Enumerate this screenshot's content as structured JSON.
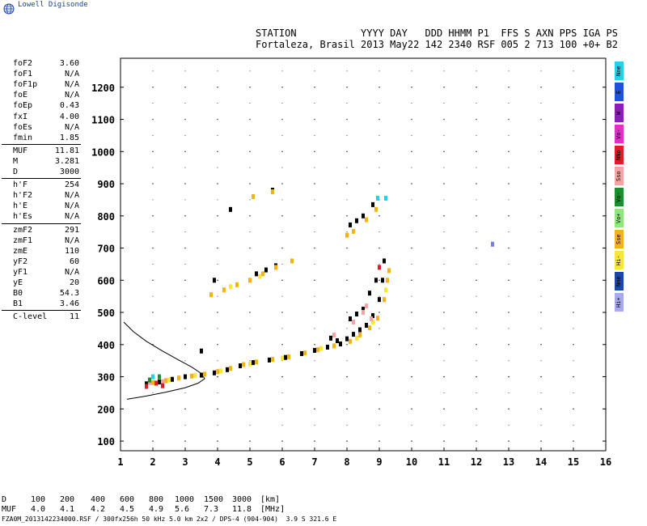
{
  "logo": {
    "text": "Lowell Digisonde",
    "icon": "globe-icon"
  },
  "header": {
    "line1": "STATION           YYYY DAY   DDD HHMM P1  FFS S AXN PPS IGA PS",
    "line2": "Fortaleza, Brasil 2013 May22 142 2340 RSF 005 2 713 100 +0+ B2"
  },
  "params": [
    {
      "name": "foF2",
      "value": "3.60"
    },
    {
      "name": "foF1",
      "value": "N/A"
    },
    {
      "name": "foF1p",
      "value": "N/A"
    },
    {
      "name": "foE",
      "value": "N/A"
    },
    {
      "name": "foEp",
      "value": "0.43"
    },
    {
      "name": "fxI",
      "value": "4.00"
    },
    {
      "name": "foEs",
      "value": "N/A"
    },
    {
      "name": "fmin",
      "value": "1.85"
    },
    {
      "name": "MUF",
      "value": "11.81"
    },
    {
      "name": "M",
      "value": "3.281"
    },
    {
      "name": "D",
      "value": "3000"
    },
    {
      "name": "h'F",
      "value": "254"
    },
    {
      "name": "h'F2",
      "value": "N/A"
    },
    {
      "name": "h'E",
      "value": "N/A"
    },
    {
      "name": "h'Es",
      "value": "N/A"
    },
    {
      "name": "zmF2",
      "value": "291"
    },
    {
      "name": "zmF1",
      "value": "N/A"
    },
    {
      "name": "zmE",
      "value": "110"
    },
    {
      "name": "yF2",
      "value": "60"
    },
    {
      "name": "yF1",
      "value": "N/A"
    },
    {
      "name": "yE",
      "value": "20"
    },
    {
      "name": "B0",
      "value": "54.3"
    },
    {
      "name": "B1",
      "value": "3.46"
    },
    {
      "name": "C-level",
      "value": "11"
    }
  ],
  "legend": [
    {
      "label": "Nne",
      "color": "#22d3e6"
    },
    {
      "label": "E",
      "color": "#1f52d6"
    },
    {
      "label": "W",
      "color": "#8b1fb5"
    },
    {
      "label": "Vo-",
      "color": "#e030c8"
    },
    {
      "label": "NNo",
      "color": "#e11b2a"
    },
    {
      "label": "Sso",
      "color": "#f4a4a4"
    },
    {
      "label": "Vo-",
      "color": "#1a8f2e"
    },
    {
      "label": "Vo+",
      "color": "#8fe87a"
    },
    {
      "label": "Sse",
      "color": "#f2b21c"
    },
    {
      "label": "Hi-",
      "color": "#f7e73a"
    },
    {
      "label": "Nne",
      "color": "#1848a8"
    },
    {
      "label": "Hi+",
      "color": "#a9a9f0"
    }
  ],
  "bottom_table": {
    "rows": [
      {
        "label": "D",
        "values": [
          "100",
          "200",
          "400",
          "600",
          "800",
          "1000",
          "1500",
          "3000"
        ],
        "unit": "[km]"
      },
      {
        "label": "MUF",
        "values": [
          "4.0",
          "4.1",
          "4.2",
          "4.5",
          "4.9",
          "5.6",
          "7.3",
          "11.8"
        ],
        "unit": "[MHz]"
      }
    ]
  },
  "footer": "FZA0M_2013142234000.RSF / 300fx256h 50 kHz 5.0 km 2x2 / DPS-4 (904-904)  3.9 S 321.6 E",
  "chart_data": {
    "type": "scatter",
    "xlim": [
      1,
      16
    ],
    "ylim": [
      70,
      1290
    ],
    "x_ticks": [
      1,
      2,
      3,
      4,
      5,
      6,
      7,
      8,
      9,
      10,
      11,
      12,
      13,
      14,
      15,
      16
    ],
    "y_ticks": [
      100,
      200,
      300,
      400,
      500,
      600,
      700,
      800,
      900,
      1000,
      1100,
      1200
    ],
    "grid": true,
    "colors": {
      "black": "#000000",
      "orange": "#f2b21c",
      "yellow": "#f7e73a",
      "pink": "#f4a4a4",
      "red": "#e11b2a",
      "cyan": "#22d3e6",
      "green": "#1a8f2e",
      "blue": "#7a7ae8"
    },
    "series": [
      {
        "role": "black echoes",
        "color": "black",
        "points": [
          [
            1.8,
            278
          ],
          [
            2.2,
            284
          ],
          [
            2.6,
            292
          ],
          [
            3.0,
            300
          ],
          [
            3.5,
            305
          ],
          [
            3.9,
            312
          ],
          [
            4.3,
            322
          ],
          [
            4.7,
            334
          ],
          [
            5.1,
            344
          ],
          [
            5.6,
            352
          ],
          [
            6.1,
            360
          ],
          [
            6.6,
            372
          ],
          [
            7.0,
            382
          ],
          [
            7.4,
            392
          ],
          [
            7.8,
            402
          ],
          [
            8.0,
            418
          ],
          [
            8.2,
            432
          ],
          [
            8.4,
            446
          ],
          [
            8.6,
            460
          ],
          [
            8.8,
            490
          ],
          [
            9.0,
            540
          ],
          [
            9.1,
            600
          ],
          [
            9.15,
            660
          ],
          [
            7.5,
            420
          ],
          [
            7.7,
            412
          ],
          [
            8.1,
            480
          ],
          [
            8.3,
            495
          ],
          [
            8.5,
            510
          ],
          [
            8.7,
            560
          ],
          [
            8.9,
            600
          ],
          [
            5.2,
            620
          ],
          [
            5.5,
            632
          ],
          [
            5.8,
            645
          ],
          [
            8.1,
            772
          ],
          [
            8.3,
            785
          ],
          [
            8.5,
            800
          ],
          [
            8.8,
            835
          ],
          [
            3.5,
            380
          ],
          [
            3.9,
            600
          ],
          [
            4.4,
            820
          ],
          [
            5.7,
            880
          ]
        ]
      },
      {
        "role": "orange echoes",
        "color": "orange",
        "points": [
          [
            2.0,
            282
          ],
          [
            2.4,
            288
          ],
          [
            2.8,
            296
          ],
          [
            3.2,
            302
          ],
          [
            3.6,
            308
          ],
          [
            4.0,
            316
          ],
          [
            4.4,
            326
          ],
          [
            4.8,
            338
          ],
          [
            5.2,
            346
          ],
          [
            5.7,
            354
          ],
          [
            6.2,
            362
          ],
          [
            6.7,
            374
          ],
          [
            7.1,
            384
          ],
          [
            7.6,
            396
          ],
          [
            8.1,
            410
          ],
          [
            8.4,
            430
          ],
          [
            8.7,
            452
          ],
          [
            8.95,
            482
          ],
          [
            9.15,
            540
          ],
          [
            9.25,
            600
          ],
          [
            9.3,
            630
          ],
          [
            4.2,
            570
          ],
          [
            4.6,
            586
          ],
          [
            5.0,
            600
          ],
          [
            5.4,
            620
          ],
          [
            5.8,
            640
          ],
          [
            6.3,
            660
          ],
          [
            3.8,
            555
          ],
          [
            8.0,
            740
          ],
          [
            8.2,
            752
          ],
          [
            8.6,
            788
          ],
          [
            8.9,
            820
          ],
          [
            5.7,
            875
          ],
          [
            5.1,
            860
          ]
        ]
      },
      {
        "role": "yellow echoes",
        "color": "yellow",
        "points": [
          [
            2.5,
            290
          ],
          [
            3.3,
            304
          ],
          [
            4.1,
            318
          ],
          [
            5.0,
            340
          ],
          [
            6.0,
            358
          ],
          [
            7.2,
            388
          ],
          [
            8.3,
            420
          ],
          [
            8.8,
            470
          ],
          [
            9.2,
            570
          ],
          [
            4.4,
            580
          ],
          [
            5.3,
            612
          ]
        ]
      },
      {
        "role": "pink echoes",
        "color": "pink",
        "points": [
          [
            1.9,
            282
          ],
          [
            2.3,
            285
          ],
          [
            8.2,
            470
          ],
          [
            8.5,
            500
          ],
          [
            8.6,
            520
          ],
          [
            8.75,
            480
          ],
          [
            7.6,
            430
          ]
        ]
      },
      {
        "role": "red echoes",
        "color": "red",
        "points": [
          [
            1.8,
            270
          ],
          [
            2.1,
            280
          ],
          [
            2.3,
            272
          ],
          [
            9.0,
            640
          ]
        ]
      },
      {
        "role": "cyan echoes",
        "color": "cyan",
        "points": [
          [
            2.0,
            300
          ],
          [
            9.2,
            855
          ],
          [
            8.95,
            855
          ]
        ]
      },
      {
        "role": "green echoes",
        "color": "green",
        "points": [
          [
            1.9,
            290
          ],
          [
            2.2,
            300
          ]
        ]
      },
      {
        "role": "blue echoes",
        "color": "blue",
        "points": [
          [
            12.5,
            712
          ]
        ]
      }
    ],
    "profile": {
      "role": "electron density profile",
      "points": [
        [
          1.2,
          230
        ],
        [
          1.8,
          240
        ],
        [
          2.4,
          252
        ],
        [
          3.0,
          266
        ],
        [
          3.4,
          280
        ],
        [
          3.6,
          294
        ],
        [
          3.5,
          310
        ],
        [
          3.2,
          330
        ],
        [
          2.8,
          352
        ],
        [
          2.3,
          380
        ],
        [
          1.8,
          410
        ],
        [
          1.4,
          440
        ],
        [
          1.1,
          470
        ]
      ]
    }
  }
}
